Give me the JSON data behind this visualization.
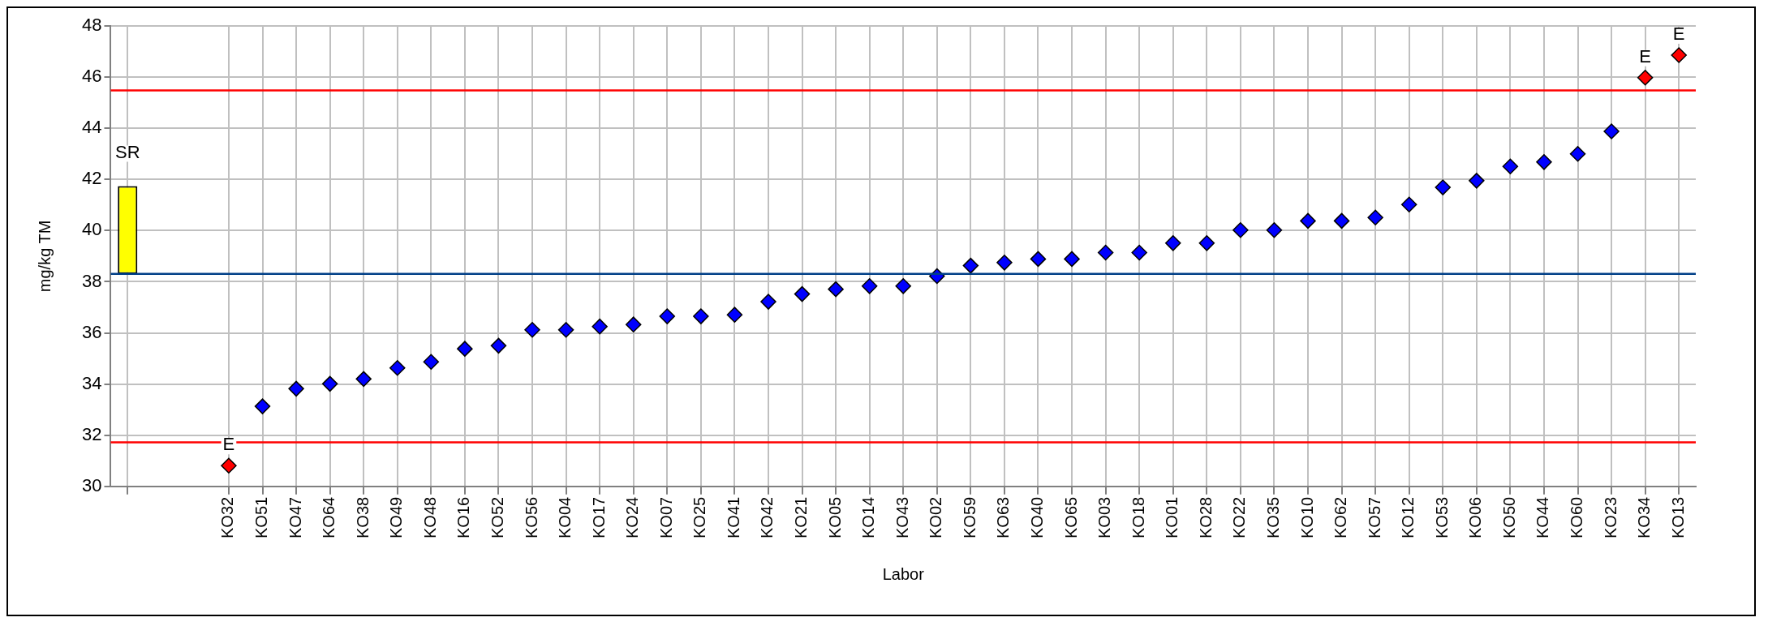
{
  "chart_data": {
    "type": "scatter",
    "xlabel": "Labor",
    "ylabel": "mg/kg TM",
    "categories": [
      null,
      null,
      null,
      "KO32",
      "KO51",
      "KO47",
      "KO64",
      "KO38",
      "KO49",
      "KO48",
      "KO16",
      "KO52",
      "KO56",
      "KO04",
      "KO17",
      "KO24",
      "KO07",
      "KO25",
      "KO41",
      "KO42",
      "KO21",
      "KO05",
      "KO14",
      "KO43",
      "KO02",
      "KO59",
      "KO63",
      "KO40",
      "KO65",
      "KO03",
      "KO18",
      "KO01",
      "KO28",
      "KO22",
      "KO35",
      "KO10",
      "KO62",
      "KO57",
      "KO12",
      "KO53",
      "KO06",
      "KO50",
      "KO44",
      "KO60",
      "KO23",
      "KO34",
      "KO13"
    ],
    "series": [
      {
        "type": "bar",
        "color": "#ffff00",
        "values": [
          3.43,
          null,
          null,
          null,
          null,
          null,
          null,
          null,
          null,
          null,
          null,
          null,
          null,
          null,
          null,
          null,
          null,
          null,
          null,
          null,
          null,
          null,
          null,
          null,
          null,
          null,
          null,
          null,
          null,
          null,
          null,
          null,
          null,
          null,
          null,
          null,
          null,
          null,
          null,
          null,
          null,
          null,
          null,
          null,
          null,
          null,
          null
        ],
        "base": [
          38.31,
          null,
          null,
          null,
          null,
          null,
          null,
          null,
          null,
          null,
          null,
          null,
          null,
          null,
          null,
          null,
          null,
          null,
          null,
          null,
          null,
          null,
          null,
          null,
          null,
          null,
          null,
          null,
          null,
          null,
          null,
          null,
          null,
          null,
          null,
          null,
          null,
          null,
          null,
          null,
          null,
          null,
          null,
          null,
          null,
          null,
          null
        ],
        "value_labels": [
          "SR",
          null,
          null,
          null,
          null,
          null,
          null,
          null,
          null,
          null,
          null,
          null,
          null,
          null,
          null,
          null,
          null,
          null,
          null,
          null,
          null,
          null,
          null,
          null,
          null,
          null,
          null,
          null,
          null,
          null,
          null,
          null,
          null,
          null,
          null,
          null,
          null,
          null,
          null,
          null,
          null,
          null,
          null,
          null,
          null,
          null,
          null
        ]
      },
      {
        "color": "#0000ff",
        "values": [
          null,
          null,
          null,
          30.81,
          33.13,
          33.82,
          34.01,
          34.2,
          34.63,
          34.87,
          35.38,
          35.5,
          36.12,
          36.12,
          36.25,
          36.33,
          36.65,
          36.65,
          36.71,
          37.22,
          37.52,
          37.71,
          37.83,
          37.83,
          38.22,
          38.63,
          38.75,
          38.89,
          38.89,
          39.14,
          39.14,
          39.51,
          39.51,
          40.02,
          40.02,
          40.38,
          40.38,
          40.51,
          41.02,
          41.69,
          41.95,
          42.51,
          42.68,
          43.0,
          43.88,
          45.98,
          46.86
        ],
        "colors": [
          null,
          null,
          null,
          "#ff0000",
          "#0000ff",
          "#0000ff",
          "#0000ff",
          "#0000ff",
          "#0000ff",
          "#0000ff",
          "#0000ff",
          "#0000ff",
          "#0000ff",
          "#0000ff",
          "#0000ff",
          "#0000ff",
          "#0000ff",
          "#0000ff",
          "#0000ff",
          "#0000ff",
          "#0000ff",
          "#0000ff",
          "#0000ff",
          "#0000ff",
          "#0000ff",
          "#0000ff",
          "#0000ff",
          "#0000ff",
          "#0000ff",
          "#0000ff",
          "#0000ff",
          "#0000ff",
          "#0000ff",
          "#0000ff",
          "#0000ff",
          "#0000ff",
          "#0000ff",
          "#0000ff",
          "#0000ff",
          "#0000ff",
          "#0000ff",
          "#0000ff",
          "#0000ff",
          "#0000ff",
          "#0000ff",
          "#ff0000",
          "#ff0000"
        ],
        "value_labels": [
          null,
          null,
          null,
          "E",
          null,
          null,
          null,
          null,
          null,
          null,
          null,
          null,
          null,
          null,
          null,
          null,
          null,
          null,
          null,
          null,
          null,
          null,
          null,
          null,
          null,
          null,
          null,
          null,
          null,
          null,
          null,
          null,
          null,
          null,
          null,
          null,
          null,
          null,
          null,
          null,
          null,
          null,
          null,
          null,
          null,
          "E",
          "E"
        ]
      }
    ],
    "ylim": [
      30,
      48
    ],
    "yticks": [
      30,
      32,
      34,
      36,
      38,
      40,
      42,
      44,
      46,
      48
    ],
    "ref_lines": [
      {
        "axis": "y",
        "value": 45.48,
        "color": "#ff0000"
      },
      {
        "axis": "y",
        "value": 31.72,
        "color": "#ff0000"
      },
      {
        "axis": "y",
        "value": 38.31,
        "color": "#003f87"
      }
    ],
    "grid": true,
    "legend": false,
    "marker": "diamond"
  }
}
